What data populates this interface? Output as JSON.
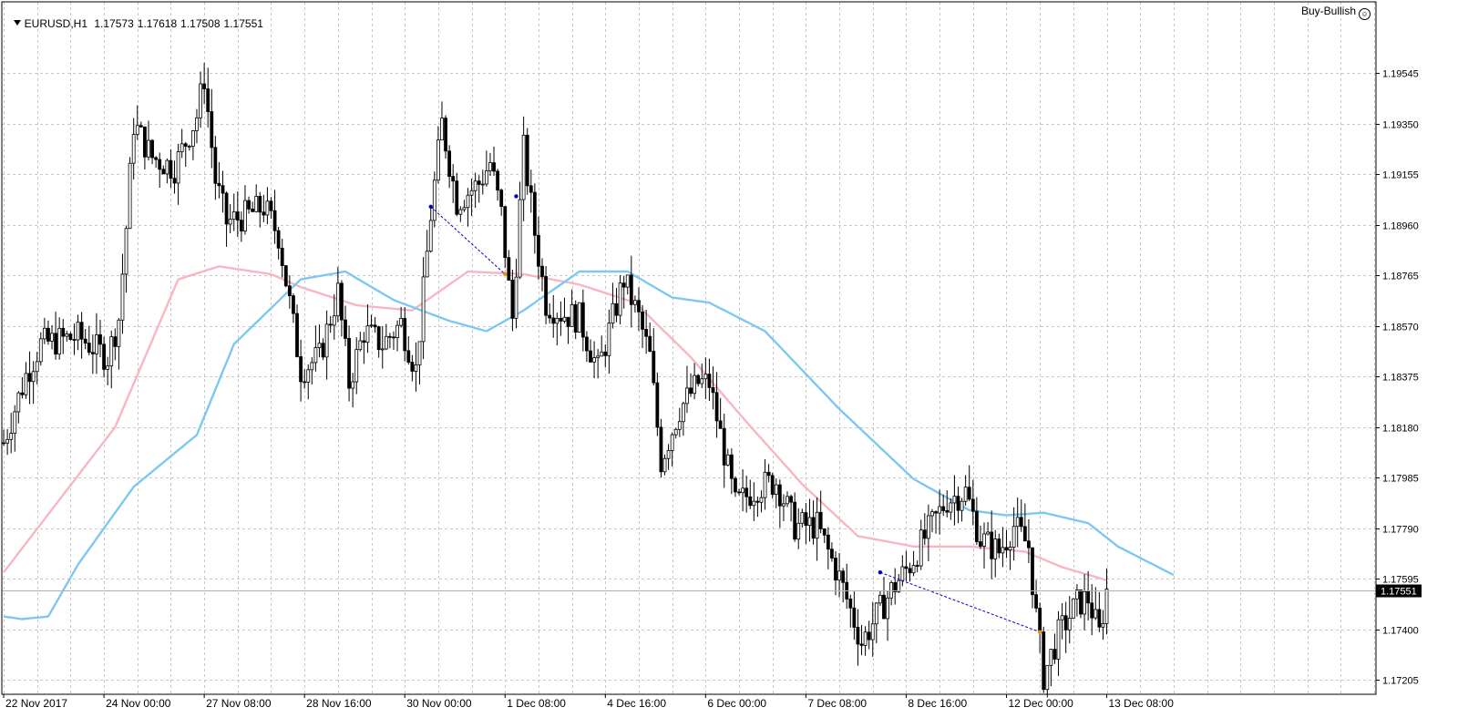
{
  "header": {
    "symbol": "EURUSD,H1",
    "open": "1.17573",
    "high": "1.17618",
    "low": "1.17508",
    "close": "1.17551"
  },
  "signal": {
    "label": "Buy-Bullish",
    "icon": "smiley-icon"
  },
  "colors": {
    "background": "#ffffff",
    "grid": "#c8c8c8",
    "candles": "#000000",
    "ma_fast": "#f7b6c0",
    "ma_slow": "#7ec8f0",
    "pattern_line": "#0000cc",
    "price_line": "#b0b0b0"
  },
  "chart_data": {
    "type": "candlestick",
    "symbol": "EURUSD",
    "timeframe": "H1",
    "current_price": 1.17551,
    "y_ticks": [
      1.19545,
      1.1935,
      1.19155,
      1.1896,
      1.18765,
      1.1857,
      1.18375,
      1.1818,
      1.17985,
      1.1779,
      1.17595,
      1.174,
      1.17205
    ],
    "y_tick_labels": [
      "1.19545",
      "1.19350",
      "1.19155",
      "1.18960",
      "1.18765",
      "1.18570",
      "1.18375",
      "1.18180",
      "1.17985",
      "1.17790",
      "1.17595",
      "1.17400",
      "1.17205"
    ],
    "ylim": [
      1.1715,
      1.1982
    ],
    "x_labels": [
      {
        "bar": 0,
        "label": "22 Nov 2017"
      },
      {
        "bar": 27,
        "label": "24 Nov 00:00"
      },
      {
        "bar": 54,
        "label": "27 Nov 08:00"
      },
      {
        "bar": 81,
        "label": "28 Nov 16:00"
      },
      {
        "bar": 108,
        "label": "30 Nov 00:00"
      },
      {
        "bar": 135,
        "label": "1 Dec 08:00"
      },
      {
        "bar": 162,
        "label": "4 Dec 16:00"
      },
      {
        "bar": 189,
        "label": "6 Dec 00:00"
      },
      {
        "bar": 216,
        "label": "7 Dec 08:00"
      },
      {
        "bar": 243,
        "label": "8 Dec 16:00"
      },
      {
        "bar": 270,
        "label": "12 Dec 00:00"
      },
      {
        "bar": 297,
        "label": "13 Dec 08:00"
      }
    ],
    "total_bars": 370,
    "bars_drawn": 298,
    "close_keypoints": [
      [
        0,
        1.1812
      ],
      [
        6,
        1.1838
      ],
      [
        10,
        1.185
      ],
      [
        20,
        1.1853
      ],
      [
        28,
        1.1845
      ],
      [
        31,
        1.186
      ],
      [
        33,
        1.1895
      ],
      [
        35,
        1.1935
      ],
      [
        40,
        1.1922
      ],
      [
        46,
        1.1918
      ],
      [
        52,
        1.1938
      ],
      [
        54,
        1.1953
      ],
      [
        57,
        1.1913
      ],
      [
        60,
        1.1897
      ],
      [
        66,
        1.19
      ],
      [
        70,
        1.1903
      ],
      [
        74,
        1.1892
      ],
      [
        78,
        1.1857
      ],
      [
        80,
        1.184
      ],
      [
        85,
        1.1845
      ],
      [
        90,
        1.187
      ],
      [
        93,
        1.1835
      ],
      [
        97,
        1.1855
      ],
      [
        102,
        1.185
      ],
      [
        107,
        1.1858
      ],
      [
        111,
        1.184
      ],
      [
        115,
        1.19
      ],
      [
        118,
        1.1935
      ],
      [
        122,
        1.1905
      ],
      [
        128,
        1.1912
      ],
      [
        131,
        1.192
      ],
      [
        134,
        1.19
      ],
      [
        136,
        1.1872
      ],
      [
        137,
        1.186
      ],
      [
        140,
        1.1925
      ],
      [
        143,
        1.1893
      ],
      [
        146,
        1.1866
      ],
      [
        150,
        1.1862
      ],
      [
        155,
        1.186
      ],
      [
        160,
        1.184
      ],
      [
        167,
        1.1875
      ],
      [
        171,
        1.186
      ],
      [
        174,
        1.1845
      ],
      [
        177,
        1.1805
      ],
      [
        182,
        1.1825
      ],
      [
        187,
        1.1835
      ],
      [
        190,
        1.1835
      ],
      [
        193,
        1.1815
      ],
      [
        197,
        1.1788
      ],
      [
        203,
        1.1795
      ],
      [
        208,
        1.1797
      ],
      [
        213,
        1.178
      ],
      [
        219,
        1.178
      ],
      [
        225,
        1.176
      ],
      [
        231,
        1.1735
      ],
      [
        235,
        1.1745
      ],
      [
        239,
        1.1755
      ],
      [
        244,
        1.1765
      ],
      [
        249,
        1.1778
      ],
      [
        254,
        1.179
      ],
      [
        259,
        1.1793
      ],
      [
        263,
        1.1775
      ],
      [
        268,
        1.177
      ],
      [
        272,
        1.178
      ],
      [
        276,
        1.1772
      ],
      [
        278,
        1.1745
      ],
      [
        280,
        1.1722
      ],
      [
        284,
        1.1738
      ],
      [
        289,
        1.175
      ],
      [
        292,
        1.1752
      ],
      [
        295,
        1.1738
      ],
      [
        297,
        1.1755
      ]
    ],
    "ma_fast_keypoints": [
      [
        0,
        1.1762
      ],
      [
        30,
        1.1818
      ],
      [
        47,
        1.1875
      ],
      [
        58,
        1.188
      ],
      [
        72,
        1.1877
      ],
      [
        80,
        1.1872
      ],
      [
        95,
        1.1865
      ],
      [
        110,
        1.1863
      ],
      [
        125,
        1.1878
      ],
      [
        140,
        1.1877
      ],
      [
        155,
        1.1873
      ],
      [
        170,
        1.1866
      ],
      [
        185,
        1.1845
      ],
      [
        200,
        1.182
      ],
      [
        215,
        1.1796
      ],
      [
        230,
        1.1776
      ],
      [
        245,
        1.1772
      ],
      [
        260,
        1.1772
      ],
      [
        275,
        1.177
      ],
      [
        285,
        1.1764
      ],
      [
        297,
        1.1759
      ]
    ],
    "ma_slow_keypoints": [
      [
        0,
        1.1745
      ],
      [
        5,
        1.1744
      ],
      [
        12,
        1.1745
      ],
      [
        20,
        1.1765
      ],
      [
        35,
        1.1795
      ],
      [
        52,
        1.1815
      ],
      [
        62,
        1.185
      ],
      [
        80,
        1.1875
      ],
      [
        92,
        1.1878
      ],
      [
        105,
        1.1867
      ],
      [
        120,
        1.1859
      ],
      [
        130,
        1.1855
      ],
      [
        140,
        1.1863
      ],
      [
        155,
        1.1878
      ],
      [
        168,
        1.1878
      ],
      [
        180,
        1.1868
      ],
      [
        190,
        1.1866
      ],
      [
        205,
        1.1855
      ],
      [
        225,
        1.1825
      ],
      [
        245,
        1.1798
      ],
      [
        260,
        1.1786
      ],
      [
        270,
        1.1784
      ],
      [
        280,
        1.1785
      ],
      [
        292,
        1.1781
      ],
      [
        300,
        1.1772
      ],
      [
        315,
        1.1761
      ]
    ],
    "pattern_lines": [
      {
        "from": [
          115,
          1.1903
        ],
        "to": [
          135,
          1.1877
        ]
      },
      {
        "from": [
          236,
          1.1762
        ],
        "to": [
          279,
          1.1739
        ]
      }
    ],
    "markers": [
      {
        "bar": 115,
        "price": 1.1903,
        "kind": "blue-dot"
      },
      {
        "bar": 138,
        "price": 1.1907,
        "kind": "blue-dot"
      },
      {
        "bar": 236,
        "price": 1.1762,
        "kind": "blue-dot"
      },
      {
        "bar": 135,
        "price": 1.1877,
        "kind": "orange-dot"
      },
      {
        "bar": 279,
        "price": 1.1739,
        "kind": "orange-dot"
      }
    ]
  }
}
